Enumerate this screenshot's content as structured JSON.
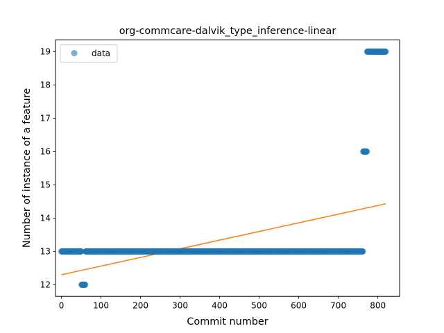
{
  "chart_data": {
    "type": "scatter",
    "title": "org-commcare-dalvik_type_inference-linear",
    "xlabel": "Commit number",
    "ylabel": "Number of instance of a feature",
    "xlim": [
      -15,
      855
    ],
    "ylim": [
      11.65,
      19.35
    ],
    "xticks": [
      0,
      100,
      200,
      300,
      400,
      500,
      600,
      700,
      800
    ],
    "yticks": [
      12,
      13,
      14,
      15,
      16,
      17,
      18,
      19
    ],
    "legend": {
      "placement": "upper-left",
      "entries": [
        "data"
      ]
    },
    "colors": {
      "data": "#1f77b4",
      "fit": "#ff7f0e"
    },
    "series": [
      {
        "name": "data",
        "kind": "scatter",
        "segments": [
          {
            "x_start": 0,
            "x_end": 50,
            "y": 13
          },
          {
            "x_start": 51,
            "x_end": 60,
            "y": 12
          },
          {
            "x_start": 61,
            "x_end": 762,
            "y": 13
          },
          {
            "x_start": 763,
            "x_end": 772,
            "y": 16
          },
          {
            "x_start": 773,
            "x_end": 820,
            "y": 19
          }
        ]
      },
      {
        "kind": "line",
        "x": [
          0,
          820
        ],
        "y": [
          12.3,
          14.43
        ]
      }
    ]
  }
}
